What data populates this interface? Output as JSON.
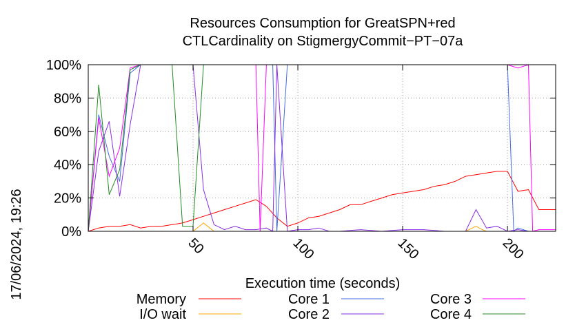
{
  "chart_data": {
    "type": "line",
    "title": [
      "Resources Consumption for GreatSPN+red",
      "CTLCardinality on StigmergyCommit−PT−07a"
    ],
    "xlabel": "Execution time (seconds)",
    "ylabel": "",
    "side_label": "17/06/2024, 19:26",
    "xlim": [
      0,
      223
    ],
    "ylim": [
      0,
      100
    ],
    "xticks": [
      50,
      100,
      150,
      200
    ],
    "yticks": [
      0,
      20,
      40,
      60,
      80,
      100
    ],
    "ytick_labels": [
      "0%",
      "20%",
      "40%",
      "60%",
      "80%",
      "100%"
    ],
    "grid": true,
    "legend_position": "bottom",
    "series": [
      {
        "name": "Memory",
        "color": "#ff0000",
        "x": [
          0,
          5,
          10,
          15,
          20,
          25,
          30,
          35,
          40,
          45,
          50,
          55,
          60,
          65,
          70,
          75,
          80,
          85,
          90,
          95,
          100,
          105,
          110,
          115,
          120,
          125,
          130,
          135,
          140,
          145,
          150,
          155,
          160,
          165,
          170,
          175,
          180,
          185,
          190,
          195,
          200,
          205,
          210,
          215,
          223
        ],
        "y": [
          0,
          2,
          3,
          3,
          4,
          2,
          3,
          3,
          4,
          5,
          7,
          9,
          11,
          13,
          15,
          17,
          19,
          15,
          8,
          3,
          5,
          8,
          9,
          11,
          13,
          16,
          16,
          18,
          20,
          22,
          23,
          24,
          25,
          27,
          28,
          30,
          33,
          34,
          35,
          36,
          36,
          24,
          25,
          13,
          13
        ]
      },
      {
        "name": "I/O wait",
        "color": "#ffa500",
        "x": [
          0,
          50,
          55,
          58,
          60,
          180,
          185,
          188,
          190,
          223
        ],
        "y": [
          0,
          0,
          5,
          2,
          0,
          0,
          3,
          1,
          0,
          0
        ]
      },
      {
        "name": "Core 1",
        "color": "#4169e1",
        "x": [
          0,
          5,
          10,
          15,
          20,
          25,
          30,
          35,
          40,
          45,
          50,
          55,
          60,
          65,
          70,
          75,
          80,
          85,
          88,
          90,
          95,
          100,
          105,
          110,
          130,
          150,
          170,
          180,
          190,
          198,
          200,
          203,
          205,
          210,
          215,
          223
        ],
        "y": [
          0,
          70,
          45,
          30,
          95,
          100,
          100,
          100,
          100,
          100,
          100,
          100,
          100,
          100,
          100,
          100,
          100,
          100,
          100,
          0,
          100,
          100,
          100,
          100,
          100,
          100,
          100,
          100,
          100,
          100,
          100,
          0,
          2,
          0,
          0,
          0
        ]
      },
      {
        "name": "Core 2",
        "color": "#8a2be2",
        "x": [
          0,
          5,
          10,
          15,
          20,
          25,
          30,
          35,
          40,
          45,
          50,
          55,
          60,
          65,
          70,
          75,
          80,
          85,
          88,
          90,
          95,
          100,
          105,
          110,
          115,
          120,
          130,
          140,
          150,
          160,
          170,
          180,
          185,
          190,
          195,
          200,
          205,
          210,
          215,
          223
        ],
        "y": [
          0,
          48,
          66,
          21,
          64,
          100,
          100,
          100,
          100,
          100,
          100,
          25,
          4,
          1,
          3,
          1,
          1,
          2,
          0,
          100,
          0,
          1,
          1,
          2,
          0,
          0,
          1,
          0,
          1,
          1,
          0,
          0,
          13,
          2,
          3,
          0,
          1,
          0,
          0,
          0
        ]
      },
      {
        "name": "Core 3",
        "color": "#ff00ff",
        "x": [
          0,
          5,
          10,
          15,
          20,
          25,
          30,
          35,
          40,
          45,
          50,
          55,
          60,
          65,
          70,
          75,
          80,
          82,
          85,
          90,
          95,
          100,
          110,
          130,
          150,
          170,
          190,
          200,
          205,
          210,
          212,
          215,
          223
        ],
        "y": [
          0,
          68,
          33,
          50,
          98,
          100,
          100,
          100,
          100,
          100,
          100,
          100,
          100,
          100,
          100,
          100,
          100,
          0,
          100,
          100,
          100,
          100,
          100,
          100,
          100,
          100,
          100,
          100,
          98,
          100,
          0,
          1,
          1
        ]
      },
      {
        "name": "Core 4",
        "color": "#228b22",
        "x": [
          0,
          5,
          10,
          15,
          20,
          25,
          30,
          35,
          40,
          45,
          50,
          55,
          60,
          65,
          70,
          75,
          80,
          85,
          90,
          95,
          100,
          110,
          130,
          150,
          170,
          190,
          210,
          223
        ],
        "y": [
          0,
          88,
          22,
          37,
          97,
          100,
          100,
          100,
          100,
          3,
          3,
          100,
          100,
          100,
          100,
          100,
          100,
          100,
          100,
          100,
          100,
          100,
          100,
          100,
          100,
          100,
          100,
          100
        ]
      }
    ]
  }
}
